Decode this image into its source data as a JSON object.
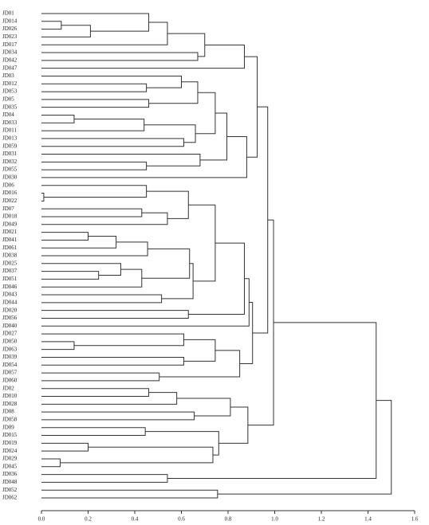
{
  "chart_data": {
    "type": "dendrogram",
    "orientation": "horizontal",
    "xlim": [
      0,
      1.6
    ],
    "xticks": [
      {
        "value": 0,
        "label": "0.0"
      },
      0.2,
      0.4,
      0.6,
      0.8,
      {
        "value": 1,
        "label": "1.0"
      },
      1.2,
      1.4,
      1.6
    ],
    "color": "#333333",
    "tree": {
      "height": 1.5,
      "children": [
        {
          "height": 1.435,
          "children": [
            {
              "height": 0.995,
              "children": [
                {
                  "height": 0.97,
                  "children": [
                    {
                      "height": 0.925,
                      "children": [
                        {
                          "height": 0.87,
                          "children": [
                            {
                              "height": 0.7,
                              "children": [
                                {
                                  "height": 0.54,
                                  "children": [
                                    {
                                      "height": 0.46,
                                      "children": [
                                        "JD01",
                                        {
                                          "height": 0.21,
                                          "children": [
                                            {
                                              "height": 0.085,
                                              "children": [
                                                "JD014",
                                                "JD026"
                                              ]
                                            },
                                            "JD023"
                                          ]
                                        }
                                      ]
                                    },
                                    "JD017"
                                  ]
                                },
                                {
                                  "height": 0.67,
                                  "children": [
                                    "JD034",
                                    "JD042"
                                  ]
                                }
                              ]
                            },
                            "JD047"
                          ]
                        },
                        {
                          "height": 0.88,
                          "children": [
                            {
                              "height": 0.795,
                              "children": [
                                {
                                  "height": 0.745,
                                  "children": [
                                    {
                                      "height": 0.67,
                                      "children": [
                                        {
                                          "height": 0.6,
                                          "children": [
                                            "JD03",
                                            {
                                              "height": 0.45,
                                              "children": [
                                                "JD012",
                                                "JD053"
                                              ]
                                            }
                                          ]
                                        },
                                        {
                                          "height": 0.46,
                                          "children": [
                                            "JD05",
                                            "JD035"
                                          ]
                                        }
                                      ]
                                    },
                                    {
                                      "height": 0.66,
                                      "children": [
                                        {
                                          "height": 0.44,
                                          "children": [
                                            {
                                              "height": 0.14,
                                              "children": [
                                                "JD04",
                                                "JD033"
                                              ]
                                            },
                                            "JD011"
                                          ]
                                        },
                                        {
                                          "height": 0.61,
                                          "children": [
                                            "JD013",
                                            "JD059"
                                          ]
                                        }
                                      ]
                                    }
                                  ]
                                },
                                {
                                  "height": 0.68,
                                  "children": [
                                    "JD031",
                                    {
                                      "height": 0.45,
                                      "children": [
                                        "JD032",
                                        "JD055"
                                      ]
                                    }
                                  ]
                                }
                              ]
                            },
                            "JD030"
                          ]
                        }
                      ]
                    },
                    {
                      "height": 0.905,
                      "children": [
                        {
                          "height": 0.89,
                          "children": [
                            {
                              "height": 0.87,
                              "children": [
                                {
                                  "height": 0.745,
                                  "children": [
                                    {
                                      "height": 0.63,
                                      "children": [
                                        {
                                          "height": 0.45,
                                          "children": [
                                            "JD06",
                                            {
                                              "height": 0.01,
                                              "children": [
                                                "JD016",
                                                "JD022"
                                              ]
                                            }
                                          ]
                                        },
                                        {
                                          "height": 0.54,
                                          "children": [
                                            {
                                              "height": 0.43,
                                              "children": [
                                                "JD07",
                                                "JD018"
                                              ]
                                            },
                                            "JD049"
                                          ]
                                        }
                                      ]
                                    },
                                    {
                                      "height": 0.65,
                                      "children": [
                                        {
                                          "height": 0.635,
                                          "children": [
                                            {
                                              "height": 0.455,
                                              "children": [
                                                {
                                                  "height": 0.32,
                                                  "children": [
                                                    {
                                                      "height": 0.2,
                                                      "children": [
                                                        "JD021",
                                                        "JD041"
                                                      ]
                                                    },
                                                    "JD061"
                                                  ]
                                                },
                                                "JD038"
                                              ]
                                            },
                                            {
                                              "height": 0.43,
                                              "children": [
                                                {
                                                  "height": 0.34,
                                                  "children": [
                                                    "JD025",
                                                    {
                                                      "height": 0.245,
                                                      "children": [
                                                        "JD037",
                                                        "JD051"
                                                      ]
                                                    }
                                                  ]
                                                },
                                                "JD046"
                                              ]
                                            }
                                          ]
                                        },
                                        {
                                          "height": 0.515,
                                          "children": [
                                            "JD043",
                                            "JD044"
                                          ]
                                        }
                                      ]
                                    }
                                  ]
                                },
                                {
                                  "height": 0.63,
                                  "children": [
                                    "JD020",
                                    "JD056"
                                  ]
                                }
                              ]
                            },
                            "JD040"
                          ]
                        },
                        {
                          "height": 0.85,
                          "children": [
                            {
                              "height": 0.745,
                              "children": [
                                {
                                  "height": 0.61,
                                  "children": [
                                    "JD027",
                                    {
                                      "height": 0.14,
                                      "children": [
                                        "JD050",
                                        "JD063"
                                      ]
                                    }
                                  ]
                                },
                                {
                                  "height": 0.61,
                                  "children": [
                                    "JD039",
                                    "JD054"
                                  ]
                                }
                              ]
                            },
                            {
                              "height": 0.505,
                              "children": [
                                "JD057",
                                "JD060"
                              ]
                            }
                          ]
                        }
                      ]
                    }
                  ]
                },
                {
                  "height": 0.885,
                  "children": [
                    {
                      "height": 0.81,
                      "children": [
                        {
                          "height": 0.58,
                          "children": [
                            {
                              "height": 0.46,
                              "children": [
                                "JD02",
                                "JD010"
                              ]
                            },
                            "JD028"
                          ]
                        },
                        {
                          "height": 0.655,
                          "children": [
                            "JD08",
                            "JD058"
                          ]
                        }
                      ]
                    },
                    {
                      "height": 0.76,
                      "children": [
                        {
                          "height": 0.445,
                          "children": [
                            "JD09",
                            "JD015"
                          ]
                        },
                        {
                          "height": 0.735,
                          "children": [
                            {
                              "height": 0.2,
                              "children": [
                                "JD019",
                                "JD024"
                              ]
                            },
                            {
                              "height": 0.08,
                              "children": [
                                "JD029",
                                "JD045"
                              ]
                            }
                          ]
                        }
                      ]
                    }
                  ]
                }
              ]
            },
            {
              "height": 0.54,
              "children": [
                "JD036",
                "JD048"
              ]
            }
          ]
        },
        {
          "height": 0.755,
          "children": [
            "JD052",
            "JD062"
          ]
        }
      ]
    }
  }
}
